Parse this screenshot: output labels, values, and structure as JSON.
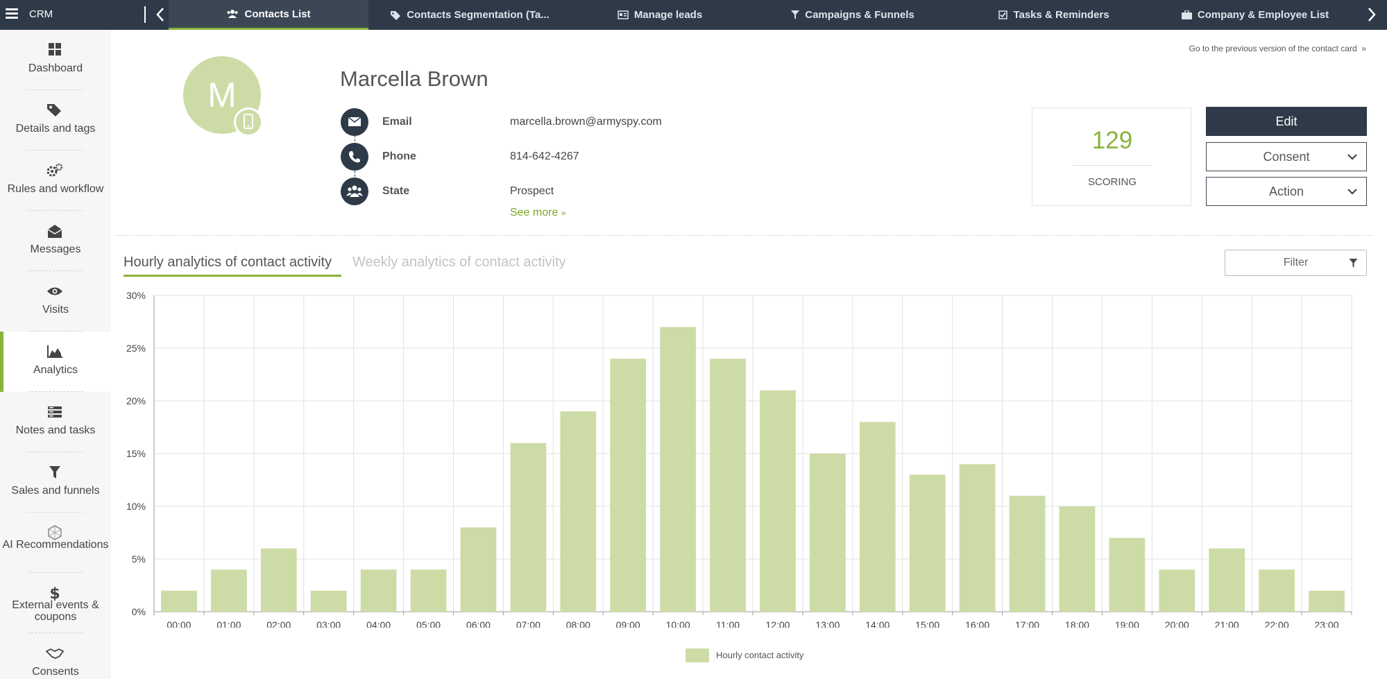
{
  "topbar": {
    "app_name": "CRM",
    "tabs": [
      {
        "label": "Contacts List",
        "icon": "users-icon",
        "active": true
      },
      {
        "label": "Contacts Segmentation (Ta...",
        "icon": "tags-icon"
      },
      {
        "label": "Manage leads",
        "icon": "id-card-icon"
      },
      {
        "label": "Campaigns & Funnels",
        "icon": "funnel-icon"
      },
      {
        "label": "Tasks & Reminders",
        "icon": "checkbox-icon"
      },
      {
        "label": "Company & Employee List",
        "icon": "briefcase-icon"
      }
    ]
  },
  "sidebar": {
    "items": [
      {
        "label": "Dashboard",
        "icon": "dashboard-icon"
      },
      {
        "label": "Details and tags",
        "icon": "tags-icon"
      },
      {
        "label": "Rules and workflow",
        "icon": "gears-icon"
      },
      {
        "label": "Messages",
        "icon": "envelope-open-icon"
      },
      {
        "label": "Visits",
        "icon": "eye-icon"
      },
      {
        "label": "Analytics",
        "icon": "area-chart-icon",
        "active": true
      },
      {
        "label": "Notes and tasks",
        "icon": "notes-icon"
      },
      {
        "label": "Sales and funnels",
        "icon": "funnel-icon"
      },
      {
        "label": "AI Recommendations",
        "icon": "ai-icon"
      },
      {
        "label": "External events & coupons",
        "icon": "dollar-icon"
      },
      {
        "label": "Consents",
        "icon": "handshake-icon"
      }
    ]
  },
  "contact": {
    "previous_version_link": "Go to the previous version of the contact card",
    "avatar_letter": "M",
    "name": "Marcella Brown",
    "fields": [
      {
        "label": "Email",
        "value": "marcella.brown@armyspy.com",
        "icon": "envelope-icon"
      },
      {
        "label": "Phone",
        "value": "814-642-4267",
        "icon": "phone-icon"
      },
      {
        "label": "State",
        "value": "Prospect",
        "icon": "group-icon"
      }
    ],
    "see_more": "See more"
  },
  "scoring": {
    "value": "129",
    "label": "SCORING"
  },
  "actions": {
    "edit": "Edit",
    "consent": "Consent",
    "action": "Action"
  },
  "analytics": {
    "tab_hourly": "Hourly analytics of contact activity",
    "tab_weekly": "Weekly analytics of contact activity",
    "filter_label": "Filter"
  },
  "colors": {
    "accent": "#8ab33a",
    "bar": "#cddca6",
    "dark": "#2e3a48"
  },
  "chart_data": {
    "type": "bar",
    "categories": [
      "00:00",
      "01:00",
      "02:00",
      "03:00",
      "04:00",
      "05:00",
      "06:00",
      "07:00",
      "08:00",
      "09:00",
      "10:00",
      "11:00",
      "12:00",
      "13:00",
      "14:00",
      "15:00",
      "16:00",
      "17:00",
      "18:00",
      "19:00",
      "20:00",
      "21:00",
      "22:00",
      "23:00"
    ],
    "series": [
      {
        "name": "Hourly contact activity",
        "values": [
          2,
          4,
          6,
          2,
          4,
          4,
          8,
          16,
          19,
          24,
          27,
          24,
          21,
          15,
          18,
          13,
          14,
          11,
          10,
          7,
          4,
          6,
          4,
          2
        ]
      }
    ],
    "ylim": [
      0,
      30
    ],
    "yticks": [
      "0%",
      "5%",
      "10%",
      "15%",
      "20%",
      "25%",
      "30%"
    ],
    "grid": true,
    "legend": "bottom-center"
  }
}
